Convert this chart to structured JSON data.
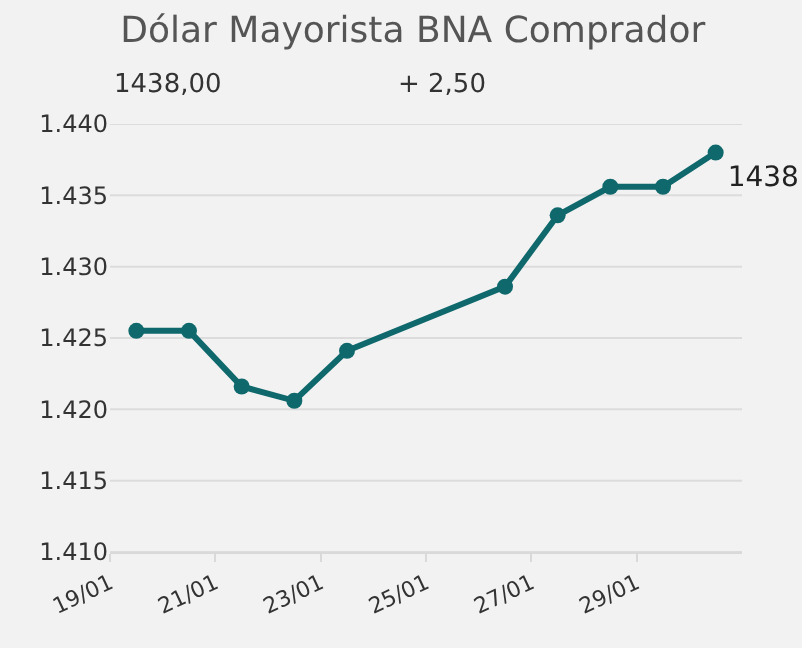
{
  "chart_data": {
    "type": "line",
    "title": "Dólar Mayorista BNA Comprador",
    "subtitle": "1438,00",
    "annotations": [
      "+ 2,50"
    ],
    "x": [
      "--01-19T12:00",
      "--01-20T12:00",
      "--01-21T12:00",
      "--01-22T12:00",
      "--01-23T12:00",
      "--01-26T12:00",
      "--01-27T12:00",
      "--01-28T12:00",
      "--01-29T12:00",
      "--01-30T12:00"
    ],
    "series": [
      {
        "color": "#0f686c",
        "values": [
          1425.5,
          1425.5,
          1421.6,
          1420.6,
          1424.1,
          1428.6,
          1433.6,
          1435.6,
          1435.6,
          1438
        ],
        "value_labels": [
          null,
          null,
          null,
          null,
          null,
          null,
          null,
          null,
          null,
          "1438"
        ]
      }
    ],
    "xlim": [
      "--01-19",
      "--01-31"
    ],
    "xticks": [
      {
        "value": "--01-19",
        "label": "19/01"
      },
      {
        "value": "--01-21",
        "label": "21/01"
      },
      {
        "value": "--01-23",
        "label": "23/01"
      },
      {
        "value": "--01-25",
        "label": "25/01"
      },
      {
        "value": "--01-27",
        "label": "27/01"
      },
      {
        "value": "--01-29",
        "label": "29/01"
      }
    ],
    "ylim": [
      1410,
      1440
    ],
    "yticks": [
      {
        "value": 1410,
        "label": "1.410"
      },
      {
        "value": 1415,
        "label": "1.415"
      },
      {
        "value": 1420,
        "label": "1.420"
      },
      {
        "value": 1425,
        "label": "1.425"
      },
      {
        "value": 1430,
        "label": "1.430"
      },
      {
        "value": 1435,
        "label": "1.435"
      },
      {
        "value": 1440,
        "label": "1.440"
      }
    ],
    "grid": "y",
    "marker": "circle",
    "line_style": "solid"
  }
}
